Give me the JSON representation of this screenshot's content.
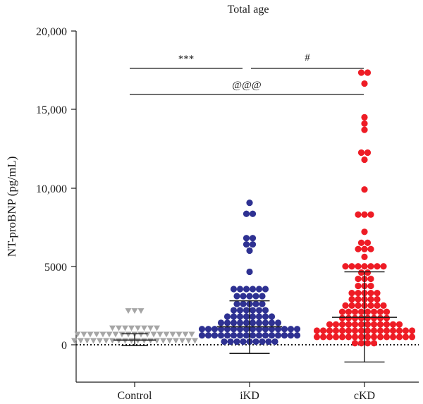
{
  "chart_data": {
    "type": "scatter",
    "title": "Total age",
    "ylabel": "NT-proBNP (pg/mL)",
    "xlabel": "",
    "ylim": [
      -2500,
      20000
    ],
    "y_ticks": [
      0,
      5000,
      10000,
      15000,
      20000
    ],
    "y_tick_labels": [
      "0",
      "5000",
      "10,000",
      "15,000",
      "20,000"
    ],
    "categories": [
      "Control",
      "iKD",
      "cKD"
    ],
    "reference_line": {
      "y": 0,
      "style": "dotted"
    },
    "series": [
      {
        "category": "Control",
        "marker": "triangle-down",
        "color": "#a6a6a6",
        "mean": 300,
        "error_low": -50,
        "error_high": 700,
        "values": [
          2150,
          2150,
          1900,
          1050,
          1000,
          1000,
          1000,
          850,
          800,
          750,
          700,
          650,
          600,
          600,
          600,
          550,
          500,
          500,
          500,
          450,
          450,
          400,
          400,
          400,
          350,
          350,
          350,
          300,
          300,
          300,
          250,
          250,
          250,
          200,
          200,
          200,
          150,
          150,
          150,
          100,
          100,
          100,
          80,
          80,
          60,
          60,
          50,
          40,
          30,
          20
        ]
      },
      {
        "category": "iKD",
        "marker": "circle",
        "color": "#2e3192",
        "mean": 1150,
        "error_low": -550,
        "error_high": 2800,
        "values": [
          9050,
          8350,
          8200,
          6800,
          6600,
          6400,
          6050,
          6000,
          4650,
          3550,
          3400,
          3350,
          3300,
          3250,
          3200,
          3100,
          2950,
          2850,
          2800,
          2750,
          2600,
          2500,
          2400,
          2350,
          2300,
          2200,
          2150,
          2100,
          2050,
          1950,
          1900,
          1800,
          1750,
          1700,
          1650,
          1600,
          1550,
          1500,
          1450,
          1400,
          1350,
          1300,
          1250,
          1200,
          1200,
          1150,
          1100,
          1100,
          1050,
          1000,
          1000,
          950,
          950,
          900,
          900,
          850,
          850,
          800,
          800,
          750,
          750,
          700,
          700,
          650,
          650,
          600,
          600,
          550,
          550,
          500,
          500,
          450,
          450,
          400,
          400,
          350,
          350,
          300,
          300,
          250,
          250,
          200,
          200,
          150,
          150,
          100,
          100,
          80,
          60,
          50
        ]
      },
      {
        "category": "cKD",
        "marker": "circle",
        "color": "#ee1c25",
        "mean": 1750,
        "error_low": -1100,
        "error_high": 4650,
        "values": [
          17350,
          17200,
          16650,
          14500,
          14100,
          13700,
          12250,
          12100,
          11800,
          9900,
          8300,
          8050,
          7950,
          7200,
          6500,
          6350,
          6100,
          5950,
          5850,
          5600,
          5000,
          4950,
          4900,
          4850,
          4800,
          4750,
          4700,
          4600,
          4500,
          4200,
          4000,
          3850,
          3750,
          3600,
          3450,
          3300,
          3200,
          3100,
          3000,
          2950,
          2900,
          2800,
          2700,
          2650,
          2600,
          2500,
          2450,
          2400,
          2300,
          2250,
          2200,
          2150,
          2100,
          2050,
          2000,
          1950,
          1900,
          1850,
          1800,
          1750,
          1700,
          1650,
          1600,
          1550,
          1500,
          1450,
          1400,
          1350,
          1300,
          1250,
          1200,
          1200,
          1150,
          1100,
          1100,
          1050,
          1000,
          1000,
          950,
          950,
          900,
          900,
          850,
          850,
          800,
          800,
          750,
          750,
          700,
          700,
          650,
          650,
          600,
          600,
          550,
          550,
          500,
          500,
          450,
          450,
          400,
          400,
          350,
          350,
          300,
          300,
          250,
          250,
          200,
          200,
          150,
          150,
          100,
          100,
          80,
          60
        ]
      }
    ],
    "significance": [
      {
        "label": "***",
        "from": "Control",
        "to": "iKD",
        "y": 17650
      },
      {
        "label": "#",
        "from": "iKD",
        "to": "cKD",
        "y": 17650
      },
      {
        "label": "@@@",
        "from": "Control",
        "to": "cKD",
        "y": 15850
      }
    ]
  }
}
